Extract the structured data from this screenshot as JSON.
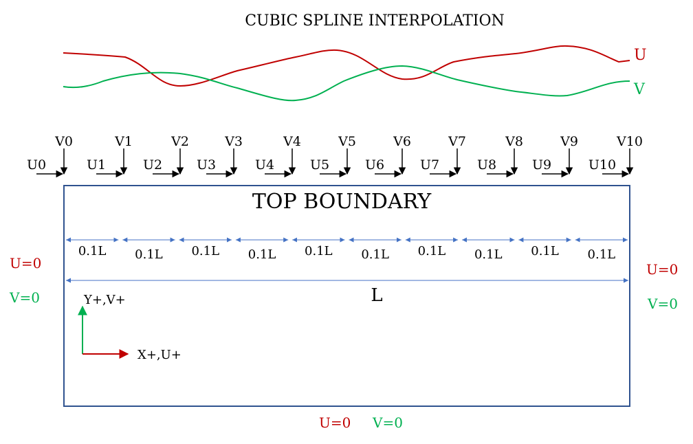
{
  "title": "CUBIC SPLINE INTERPOLATION",
  "spline_labels": {
    "u": "U",
    "v": "V"
  },
  "colors": {
    "u": "#c00000",
    "v": "#00b050",
    "dim": "#4472c4",
    "box": "#2f528f",
    "text": "#000000"
  },
  "v_labels": [
    "V0",
    "V1",
    "V2",
    "V3",
    "V4",
    "V5",
    "V6",
    "V7",
    "V8",
    "V9",
    "V10"
  ],
  "u_labels": [
    "U0",
    "U1",
    "U2",
    "U3",
    "U4",
    "U5",
    "U6",
    "U7",
    "U8",
    "U9",
    "U10"
  ],
  "top_boundary": "TOP BOUNDARY",
  "segment_label": "0.1L",
  "segment_count": 10,
  "total_length_label": "L",
  "left_wall": {
    "u": "U=0",
    "v": "V=0"
  },
  "right_wall": {
    "u": "U=0",
    "v": "V=0"
  },
  "bottom_wall": {
    "u": "U=0",
    "v": "V=0"
  },
  "axes": {
    "y": "Y+,V+",
    "x": "X+,U+"
  }
}
